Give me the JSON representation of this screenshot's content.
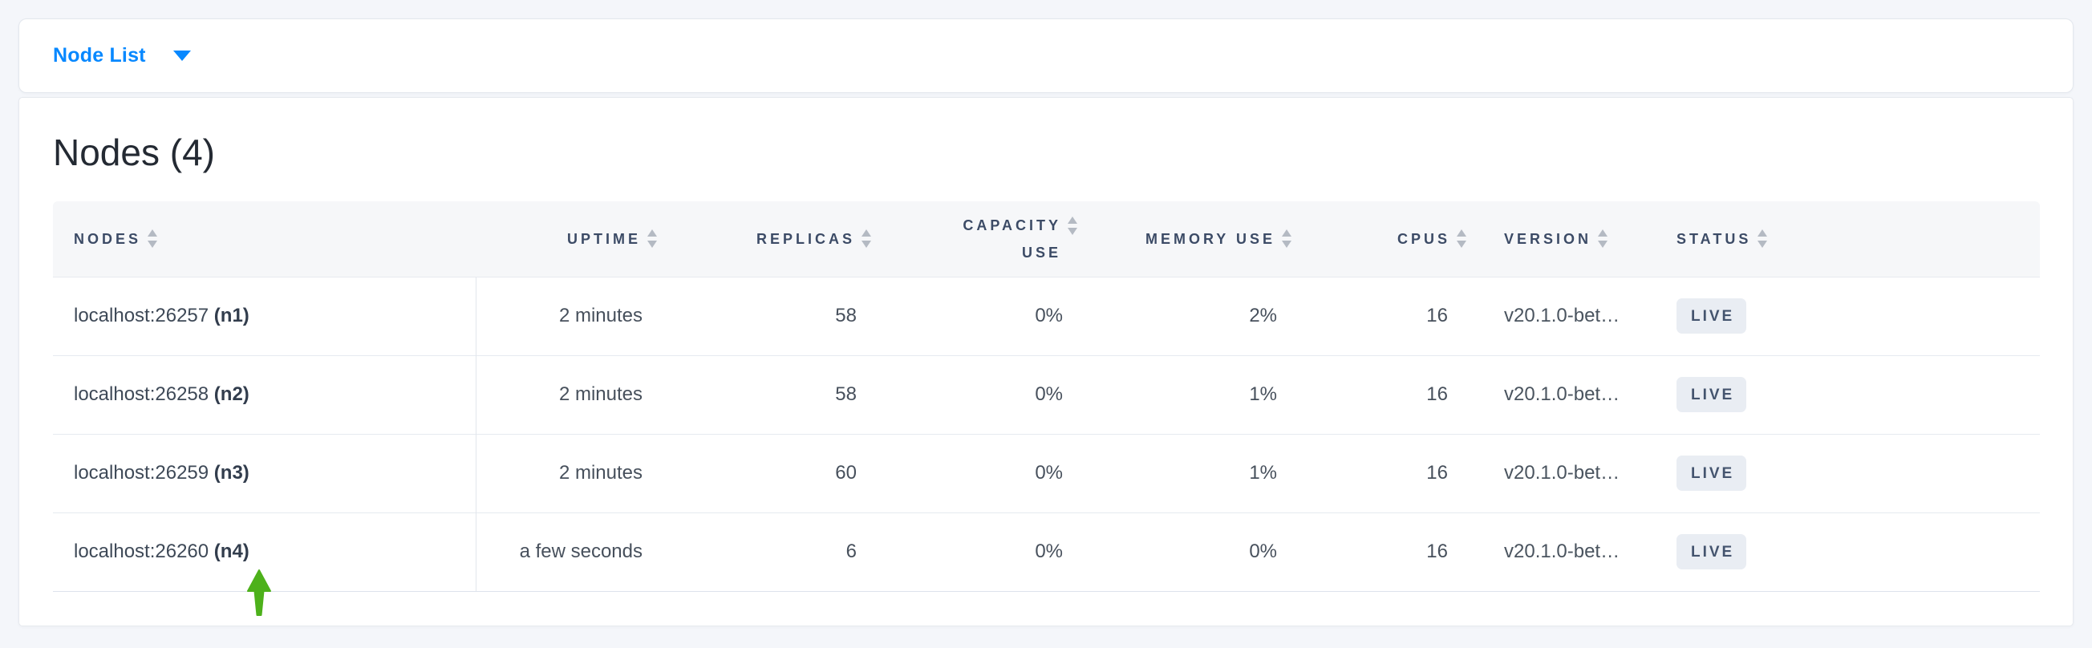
{
  "toolbar": {
    "dropdown_label": "Node List"
  },
  "panel": {
    "title": "Nodes (4)"
  },
  "table": {
    "columns": [
      {
        "key": "nodes",
        "label": "NODES",
        "align": "left",
        "sortable": true,
        "wrap": false
      },
      {
        "key": "uptime",
        "label": "UPTIME",
        "align": "right",
        "sortable": true,
        "wrap": false
      },
      {
        "key": "replicas",
        "label": "REPLICAS",
        "align": "right",
        "sortable": true,
        "wrap": false
      },
      {
        "key": "capacity_use",
        "label": "CAPACITY USE",
        "align": "right",
        "sortable": true,
        "wrap": true
      },
      {
        "key": "memory_use",
        "label": "MEMORY USE",
        "align": "right",
        "sortable": true,
        "wrap": false
      },
      {
        "key": "cpus",
        "label": "CPUS",
        "align": "right",
        "sortable": true,
        "wrap": false
      },
      {
        "key": "version",
        "label": "VERSION",
        "align": "left",
        "sortable": true,
        "wrap": false
      },
      {
        "key": "status",
        "label": "STATUS",
        "align": "left",
        "sortable": true,
        "wrap": false
      }
    ],
    "rows": [
      {
        "address": "localhost:26257",
        "node_id": "(n1)",
        "uptime": "2 minutes",
        "replicas": "58",
        "capacity_use": "0%",
        "memory_use": "2%",
        "cpus": "16",
        "version": "v20.1.0-bet…",
        "status": "LIVE"
      },
      {
        "address": "localhost:26258",
        "node_id": "(n2)",
        "uptime": "2 minutes",
        "replicas": "58",
        "capacity_use": "0%",
        "memory_use": "1%",
        "cpus": "16",
        "version": "v20.1.0-bet…",
        "status": "LIVE"
      },
      {
        "address": "localhost:26259",
        "node_id": "(n3)",
        "uptime": "2 minutes",
        "replicas": "60",
        "capacity_use": "0%",
        "memory_use": "1%",
        "cpus": "16",
        "version": "v20.1.0-bet…",
        "status": "LIVE"
      },
      {
        "address": "localhost:26260",
        "node_id": "(n4)",
        "uptime": "a few seconds",
        "replicas": "6",
        "capacity_use": "0%",
        "memory_use": "0%",
        "cpus": "16",
        "version": "v20.1.0-bet…",
        "status": "LIVE"
      }
    ]
  },
  "annotation": {
    "green_arrow_color": "#4db11b"
  },
  "colors": {
    "page_background": "#f4f6fa",
    "card_background": "#ffffff",
    "accent_blue": "#0788ff",
    "header_text": "#3c4b66",
    "body_text": "#47505c",
    "badge_background": "#e9edf3",
    "badge_text": "#44546e",
    "sort_arrow": "#b4bac3",
    "row_separator": "#e6eaf0"
  }
}
